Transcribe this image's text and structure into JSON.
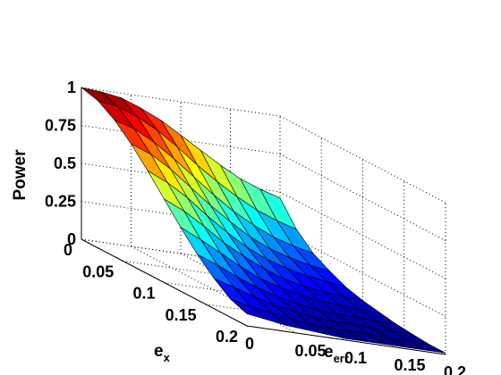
{
  "chart_data": {
    "type": "surface3d",
    "title": "",
    "zlabel": "Power",
    "xlabel": "e",
    "xlabel_sub": "err",
    "ylabel": "e",
    "ylabel_sub": "x",
    "x": [
      0,
      0.02,
      0.04,
      0.06,
      0.08,
      0.1,
      0.12,
      0.14,
      0.16,
      0.18,
      0.2
    ],
    "y": [
      0,
      0.02,
      0.04,
      0.06,
      0.08,
      0.1,
      0.12,
      0.14,
      0.16,
      0.18,
      0.2
    ],
    "xticks": [
      "0",
      "0.05",
      "0.1",
      "0.15",
      "0.2"
    ],
    "yticks": [
      "0",
      "0.05",
      "0.1",
      "0.15",
      "0.2"
    ],
    "zticks": [
      "0",
      "0.25",
      "0.5",
      "0.75",
      "1"
    ],
    "xlim": [
      0,
      0.2
    ],
    "ylim": [
      0,
      0.2
    ],
    "zlim": [
      0,
      1
    ],
    "colormap": "jet",
    "grid": true,
    "z": [
      [
        1.0,
        0.99,
        0.97,
        0.92,
        0.86,
        0.78,
        0.7,
        0.62,
        0.55,
        0.5,
        0.46
      ],
      [
        0.97,
        0.95,
        0.9,
        0.83,
        0.74,
        0.64,
        0.55,
        0.47,
        0.4,
        0.35,
        0.31
      ],
      [
        0.9,
        0.86,
        0.79,
        0.7,
        0.6,
        0.5,
        0.41,
        0.34,
        0.28,
        0.24,
        0.21
      ],
      [
        0.8,
        0.75,
        0.67,
        0.57,
        0.47,
        0.38,
        0.3,
        0.24,
        0.2,
        0.17,
        0.15
      ],
      [
        0.68,
        0.62,
        0.54,
        0.44,
        0.35,
        0.27,
        0.21,
        0.17,
        0.14,
        0.12,
        0.1
      ],
      [
        0.55,
        0.49,
        0.41,
        0.32,
        0.25,
        0.19,
        0.14,
        0.11,
        0.09,
        0.08,
        0.07
      ],
      [
        0.42,
        0.36,
        0.29,
        0.22,
        0.16,
        0.12,
        0.09,
        0.07,
        0.06,
        0.05,
        0.05
      ],
      [
        0.3,
        0.25,
        0.19,
        0.14,
        0.1,
        0.07,
        0.05,
        0.04,
        0.04,
        0.03,
        0.03
      ],
      [
        0.2,
        0.16,
        0.12,
        0.08,
        0.06,
        0.04,
        0.03,
        0.03,
        0.02,
        0.02,
        0.02
      ],
      [
        0.12,
        0.09,
        0.07,
        0.05,
        0.03,
        0.02,
        0.02,
        0.02,
        0.01,
        0.01,
        0.01
      ],
      [
        0.08,
        0.06,
        0.04,
        0.03,
        0.02,
        0.01,
        0.01,
        0.01,
        0.01,
        0.01,
        0.01
      ]
    ]
  }
}
